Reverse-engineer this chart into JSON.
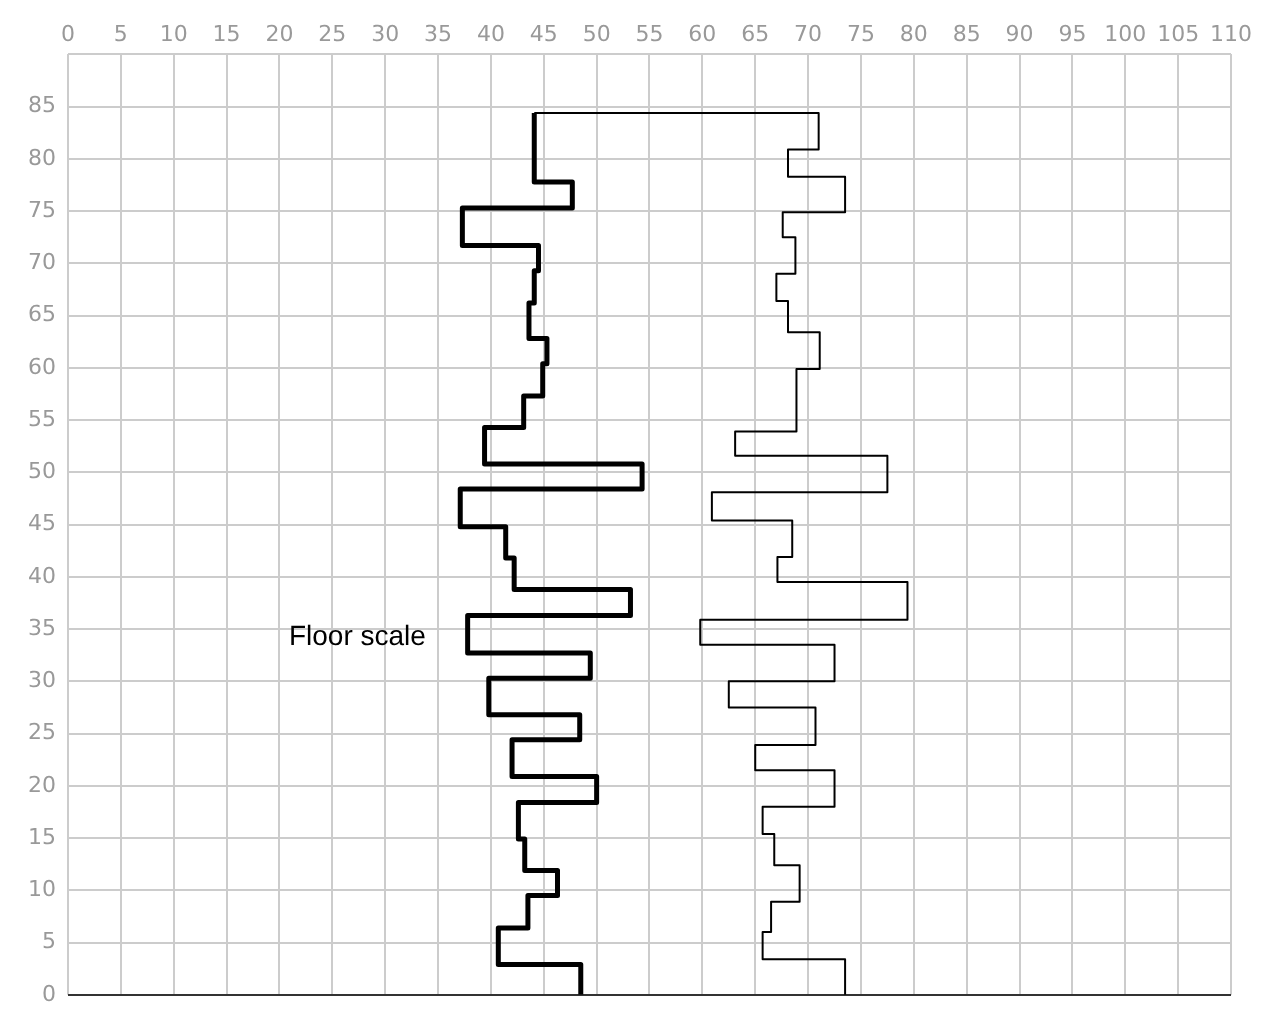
{
  "chart_data": {
    "type": "line",
    "annotations": [
      "Floor scale"
    ],
    "xlim": [
      0,
      110
    ],
    "xticks": [
      0,
      5,
      10,
      15,
      20,
      25,
      30,
      35,
      40,
      45,
      50,
      55,
      60,
      65,
      70,
      75,
      80,
      85,
      90,
      95,
      100,
      105,
      110
    ],
    "ylim": [
      0,
      90
    ],
    "yticks": [
      0,
      5,
      10,
      15,
      20,
      25,
      30,
      35,
      40,
      45,
      50,
      55,
      60,
      65,
      70,
      75,
      80,
      85,
      {
        "value": 90,
        "label": null
      }
    ],
    "grid": true,
    "legend": false,
    "marker": "none",
    "line_style": "solid",
    "series": [
      {
        "color": "#000000",
        "x": [
          48.5,
          48.5,
          40.7,
          40.7,
          43.5,
          43.5,
          46.3,
          46.3,
          43.2,
          43.2,
          42.6,
          42.6,
          50,
          50,
          42,
          42,
          48.4,
          48.4,
          39.8,
          39.8,
          49.4,
          49.4,
          37.8,
          37.8,
          53.2,
          53.2,
          42.2,
          42.2,
          41.4,
          41.4,
          37.1,
          37.1,
          54.3,
          54.3,
          39.4,
          39.4,
          43.1,
          43.1,
          44.9,
          44.9,
          45.3,
          45.3,
          43.6,
          43.6,
          44.1,
          44.1,
          44.5,
          44.5,
          37.3,
          37.3,
          47.7,
          47.7,
          44.1,
          44.1
        ],
        "values": [
          0,
          2.9,
          2.9,
          6.4,
          6.4,
          9.5,
          9.5,
          11.9,
          11.9,
          14.9,
          14.9,
          18.4,
          18.4,
          20.9,
          20.9,
          24.4,
          24.4,
          26.8,
          26.8,
          30.3,
          30.3,
          32.7,
          32.7,
          36.3,
          36.3,
          38.8,
          38.8,
          41.8,
          41.8,
          44.8,
          44.8,
          48.4,
          48.4,
          50.8,
          50.8,
          54.3,
          54.3,
          57.3,
          57.3,
          60.4,
          60.4,
          62.8,
          62.8,
          66.2,
          66.2,
          69.3,
          69.3,
          71.7,
          71.7,
          75.3,
          75.3,
          77.8,
          77.8,
          84.4
        ]
      },
      {
        "color": "#000000",
        "x": [
          44.1,
          71,
          71,
          68.1,
          68.1,
          73.5,
          73.5,
          67.6,
          67.6,
          68.8,
          68.8,
          67,
          67,
          68.1,
          68.1,
          71.1,
          71.1,
          68.9,
          68.9,
          63.1,
          63.1,
          77.5,
          77.5,
          60.9,
          60.9,
          68.5,
          68.5,
          67.1,
          67.1,
          79.4,
          79.4,
          59.8,
          59.8,
          72.5,
          72.5,
          62.5,
          62.5,
          70.7,
          70.7,
          65,
          65,
          72.5,
          72.5,
          65.7,
          65.7,
          66.8,
          66.8,
          69.2,
          69.2,
          66.5,
          66.5,
          65.7,
          65.7,
          73.5,
          73.5
        ],
        "values": [
          84.4,
          84.4,
          80.9,
          80.9,
          78.3,
          78.3,
          74.9,
          74.9,
          72.5,
          72.5,
          69,
          69,
          66.4,
          66.4,
          63.4,
          63.4,
          59.9,
          59.9,
          53.9,
          53.9,
          51.6,
          51.6,
          48.1,
          48.1,
          45.4,
          45.4,
          41.9,
          41.9,
          39.5,
          39.5,
          35.9,
          35.9,
          33.5,
          33.5,
          30,
          30,
          27.5,
          27.5,
          23.9,
          23.9,
          21.5,
          21.5,
          18,
          18,
          15.4,
          15.4,
          12.4,
          12.4,
          8.9,
          8.9,
          6,
          6,
          3.4,
          3.4,
          0
        ]
      }
    ]
  }
}
